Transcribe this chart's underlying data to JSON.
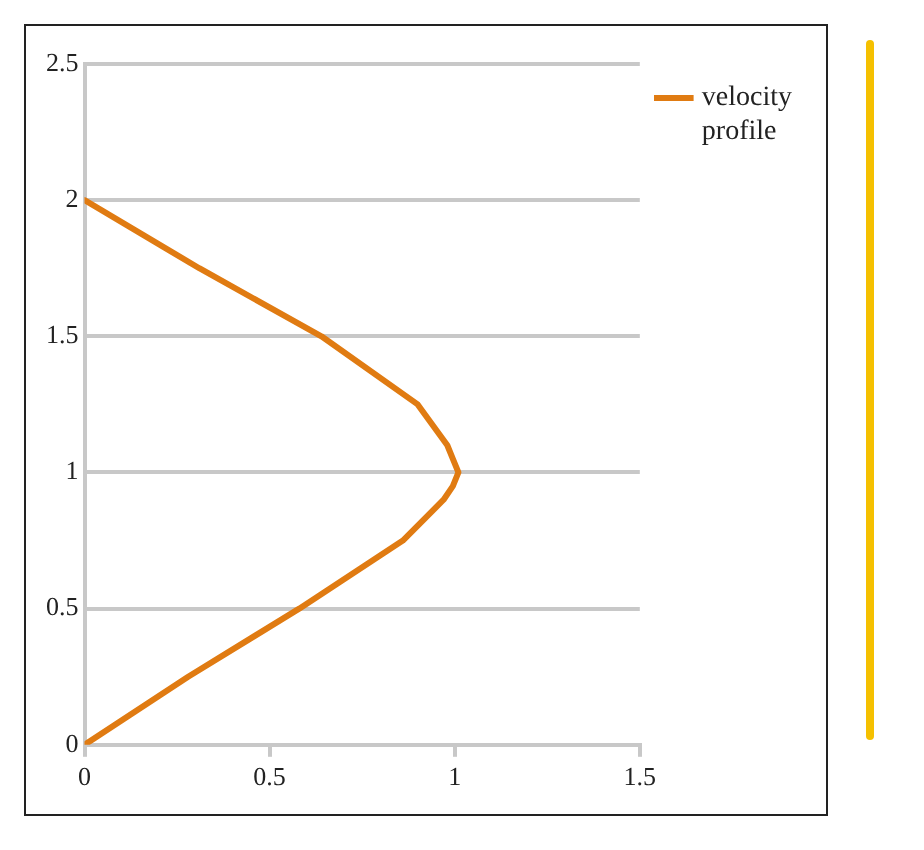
{
  "chart_data": {
    "type": "line",
    "x": [
      0,
      0.28,
      0.58,
      0.86,
      0.97,
      0.995,
      1.01,
      0.995,
      0.98,
      0.9,
      0.64,
      0.31,
      0
    ],
    "series": [
      {
        "name": "velocity profile",
        "color": "#e07b12",
        "values": [
          0,
          0.25,
          0.5,
          0.75,
          0.9,
          0.95,
          1,
          1.05,
          1.1,
          1.25,
          1.5,
          1.75,
          2
        ]
      }
    ],
    "xlim": [
      0,
      1.5
    ],
    "xticks": [
      0,
      0.5,
      1,
      1.5
    ],
    "ylim": [
      0,
      2.5
    ],
    "yticks": [
      0,
      0.5,
      1,
      1.5,
      2,
      2.5
    ],
    "grid": "y",
    "legend": "right",
    "marker": "none",
    "line_style": "solid"
  }
}
